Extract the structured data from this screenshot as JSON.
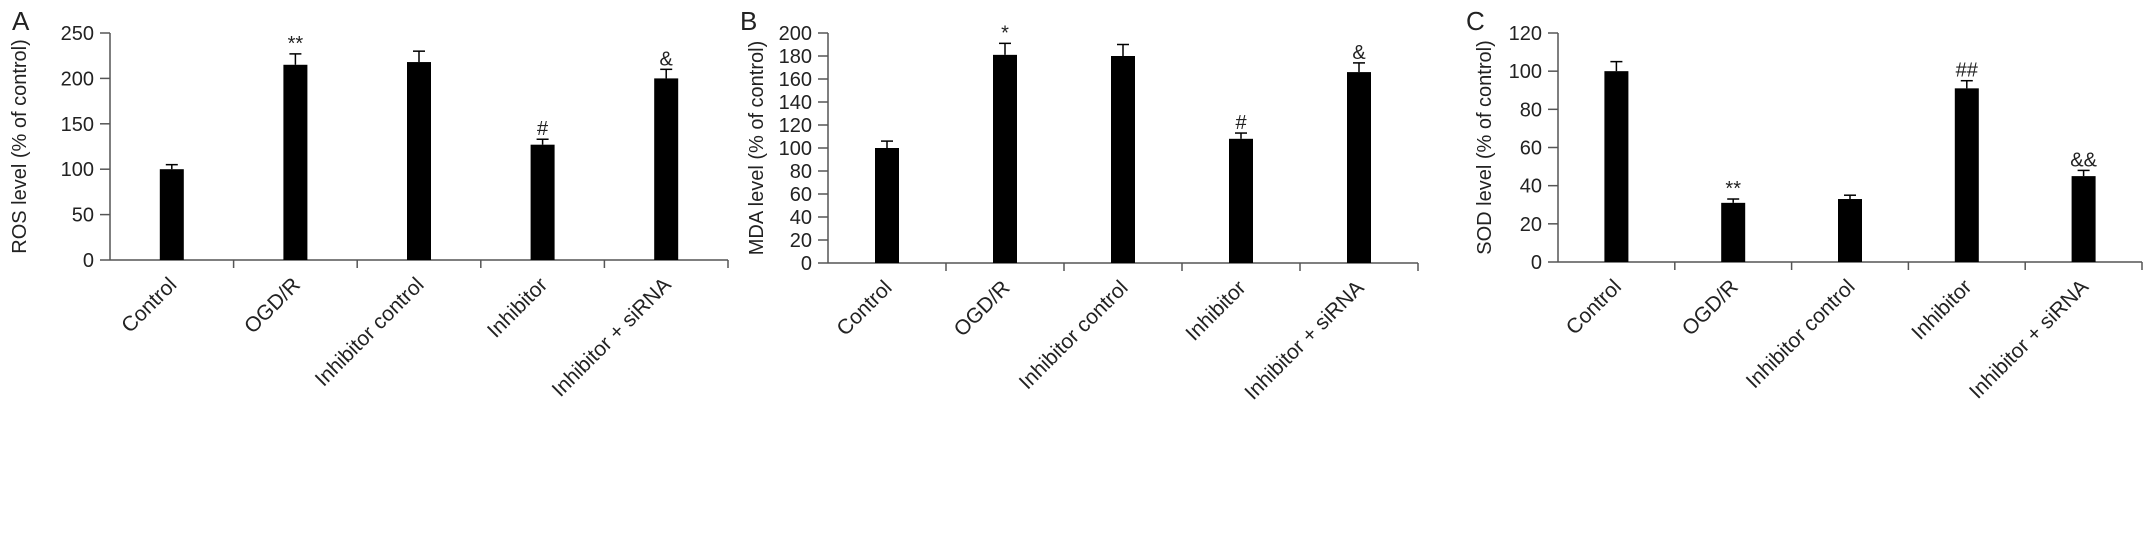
{
  "panels": [
    {
      "panel_label": "A",
      "chart_data": {
        "type": "bar",
        "categories": [
          "Control",
          "OGD/R",
          "Inhibitor control",
          "Inhibitor",
          "Inhibitor + siRNA"
        ],
        "values": [
          100,
          215,
          218,
          127,
          200
        ],
        "errors": [
          5,
          12,
          12,
          6,
          10
        ],
        "annotations": [
          "",
          "**",
          "",
          "#",
          "&"
        ],
        "title": "",
        "xlabel": "",
        "ylabel": "ROS level (% of control)",
        "ylim": [
          0,
          250
        ],
        "yticks": [
          0,
          50,
          100,
          150,
          200,
          250
        ],
        "bar_color": "#000000",
        "grid": false
      }
    },
    {
      "panel_label": "B",
      "chart_data": {
        "type": "bar",
        "categories": [
          "Control",
          "OGD/R",
          "Inhibitor control",
          "Inhibitor",
          "Inhibitor + siRNA"
        ],
        "values": [
          100,
          181,
          180,
          108,
          166
        ],
        "errors": [
          6,
          10,
          10,
          5,
          8
        ],
        "annotations": [
          "",
          "*",
          "",
          "#",
          "&"
        ],
        "title": "",
        "xlabel": "",
        "ylabel": "MDA level (% of control)",
        "ylim": [
          0,
          200
        ],
        "yticks": [
          0,
          20,
          40,
          60,
          80,
          100,
          120,
          140,
          160,
          180,
          200
        ],
        "bar_color": "#000000",
        "grid": false
      }
    },
    {
      "panel_label": "C",
      "chart_data": {
        "type": "bar",
        "categories": [
          "Control",
          "OGD/R",
          "Inhibitor control",
          "Inhibitor",
          "Inhibitor + siRNA"
        ],
        "values": [
          100,
          31,
          33,
          91,
          45
        ],
        "errors": [
          5,
          2,
          2,
          4,
          3
        ],
        "annotations": [
          "",
          "**",
          "",
          "##",
          "&&"
        ],
        "title": "",
        "xlabel": "",
        "ylabel": "SOD level (% of control)",
        "ylim": [
          0,
          120
        ],
        "yticks": [
          0,
          20,
          40,
          60,
          80,
          100,
          120
        ],
        "bar_color": "#000000",
        "grid": false
      }
    }
  ]
}
